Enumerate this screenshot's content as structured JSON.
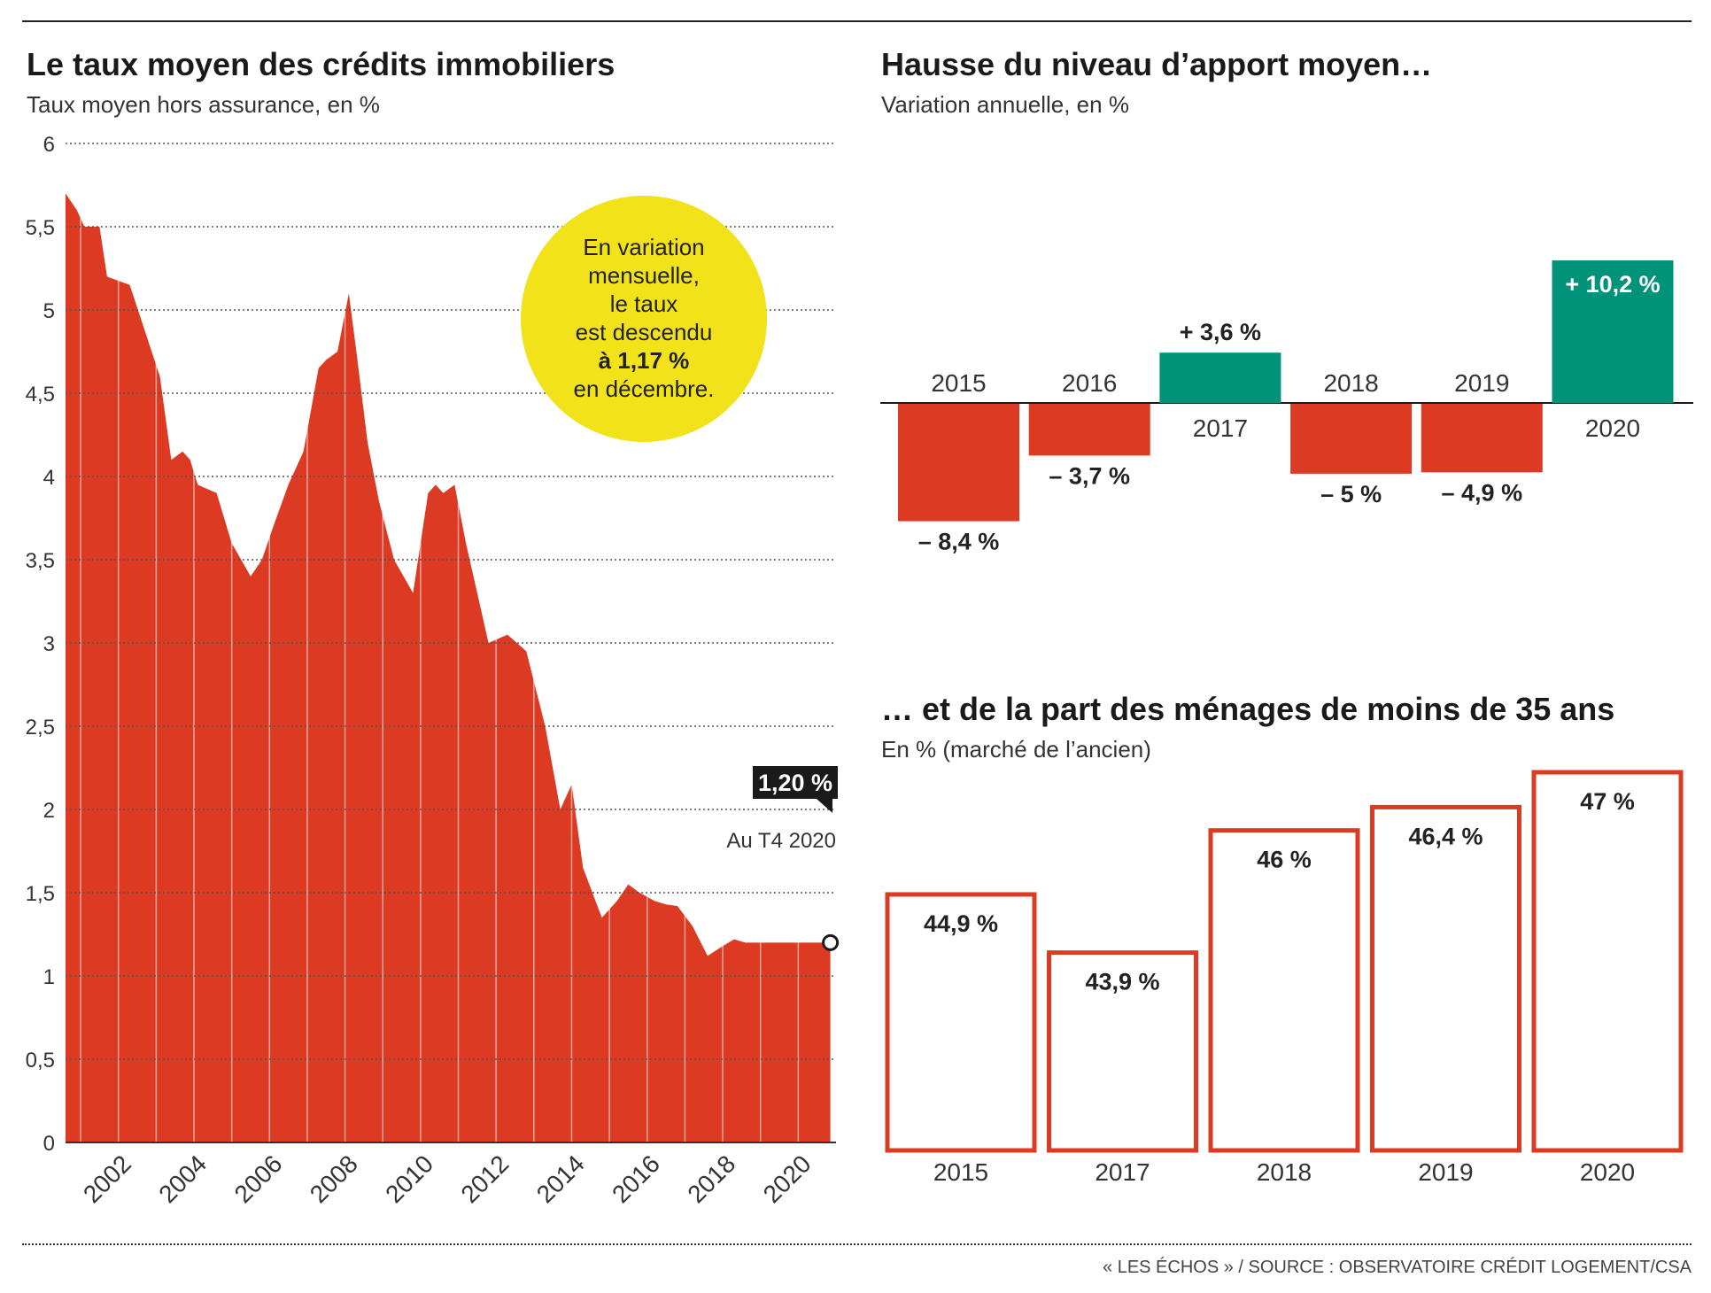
{
  "header": {
    "left_title": "Le taux moyen des crédits immobiliers",
    "left_subtitle": "Taux moyen hors assurance, en %",
    "right_top_title": "Hausse du niveau d’apport moyen…",
    "right_top_subtitle": "Variation annuelle, en %",
    "right_bottom_title": "… et de la part des ménages de moins de 35 ans",
    "right_bottom_subtitle": "En % (marché de l’ancien)"
  },
  "source": "« LES ÉCHOS » / SOURCE : OBSERVATOIRE CRÉDIT LOGEMENT/CSA",
  "annotation": {
    "bubble_lines": [
      "En variation",
      "mensuelle,",
      "le taux",
      "est descendu"
    ],
    "bubble_bold": "à 1,17 %",
    "bubble_last": "en décembre.",
    "callout_value": "1,20 %",
    "callout_note": "Au T4 2020"
  },
  "colors": {
    "area": "#dc3a22",
    "negative": "#dc3a22",
    "positive": "#009379",
    "bubble": "#f2e21a",
    "outline": "#dc3a22",
    "callout": "#1a1a1a"
  },
  "chart_data": [
    {
      "type": "area",
      "title": "Le taux moyen des crédits immobiliers",
      "subtitle": "Taux moyen hors assurance, en %",
      "ylim": [
        0,
        6
      ],
      "yticks": [
        0,
        0.5,
        1,
        1.5,
        2,
        2.5,
        3,
        3.5,
        4,
        4.5,
        5,
        5.5,
        6
      ],
      "ytick_labels": [
        "0",
        "0,5",
        "1",
        "1,5",
        "2",
        "2,5",
        "3",
        "3,5",
        "4",
        "4,5",
        "5",
        "5,5",
        "6"
      ],
      "xlim": [
        2000.6,
        2021
      ],
      "xtick_labels": [
        "2002",
        "2004",
        "2006",
        "2008",
        "2010",
        "2012",
        "2014",
        "2016",
        "2018",
        "2020"
      ],
      "grid": true,
      "x": [
        2000.6,
        2000.9,
        2001.1,
        2001.5,
        2001.7,
        2002.3,
        2003.1,
        2003.4,
        2003.7,
        2003.9,
        2004.1,
        2004.6,
        2005,
        2005.5,
        2005.8,
        2006.1,
        2006.5,
        2006.9,
        2007.3,
        2007.5,
        2007.8,
        2008.1,
        2008.3,
        2008.6,
        2008.9,
        2009.3,
        2009.8,
        2010.2,
        2010.4,
        2010.6,
        2010.9,
        2011.2,
        2011.5,
        2011.8,
        2012.3,
        2012.8,
        2013.3,
        2013.7,
        2014,
        2014.3,
        2014.8,
        2015.2,
        2015.5,
        2015.8,
        2016.2,
        2016.5,
        2016.8,
        2017.2,
        2017.6,
        2018,
        2018.3,
        2018.6,
        2018.9,
        2019.3,
        2019.6,
        2019.9,
        2020.2,
        2020.5,
        2020.85
      ],
      "y": [
        5.7,
        5.6,
        5.5,
        5.5,
        5.2,
        5.15,
        4.6,
        4.1,
        4.15,
        4.1,
        3.95,
        3.9,
        3.6,
        3.4,
        3.5,
        3.7,
        3.95,
        4.15,
        4.65,
        4.7,
        4.75,
        5.1,
        4.75,
        4.2,
        3.85,
        3.5,
        3.3,
        3.9,
        3.95,
        3.9,
        3.95,
        3.6,
        3.3,
        3.0,
        3.05,
        2.95,
        2.5,
        2.0,
        2.15,
        1.65,
        1.35,
        1.45,
        1.55,
        1.5,
        1.45,
        1.43,
        1.42,
        1.3,
        1.12,
        1.18,
        1.22,
        1.2,
        1.2,
        1.2,
        1.2,
        1.2,
        1.2,
        1.2,
        1.2
      ],
      "series_name": "",
      "last_point_label": "1,20 %"
    },
    {
      "type": "bar",
      "title": "Hausse du niveau d’apport moyen…",
      "subtitle": "Variation annuelle, en %",
      "categories": [
        "2015",
        "2016",
        "2017",
        "2018",
        "2019",
        "2020"
      ],
      "values": [
        -8.4,
        -3.7,
        3.6,
        -5.0,
        -4.9,
        10.2
      ],
      "value_labels": [
        "– 8,4 %",
        "– 3,7 %",
        "+ 3,6 %",
        "– 5 %",
        "– 4,9 %",
        "+ 10,2 %"
      ],
      "ylim": [
        -8.4,
        10.2
      ]
    },
    {
      "type": "bar",
      "title": "… et de la part des ménages de moins de 35 ans",
      "subtitle": "En % (marché de l’ancien)",
      "categories": [
        "2015",
        "2017",
        "2018",
        "2019",
        "2020"
      ],
      "values": [
        44.9,
        43.9,
        46,
        46.4,
        47
      ],
      "value_labels": [
        "44,9 %",
        "43,9 %",
        "46 %",
        "46,4 %",
        "47 %"
      ],
      "ylim": [
        40.5,
        47
      ]
    }
  ]
}
